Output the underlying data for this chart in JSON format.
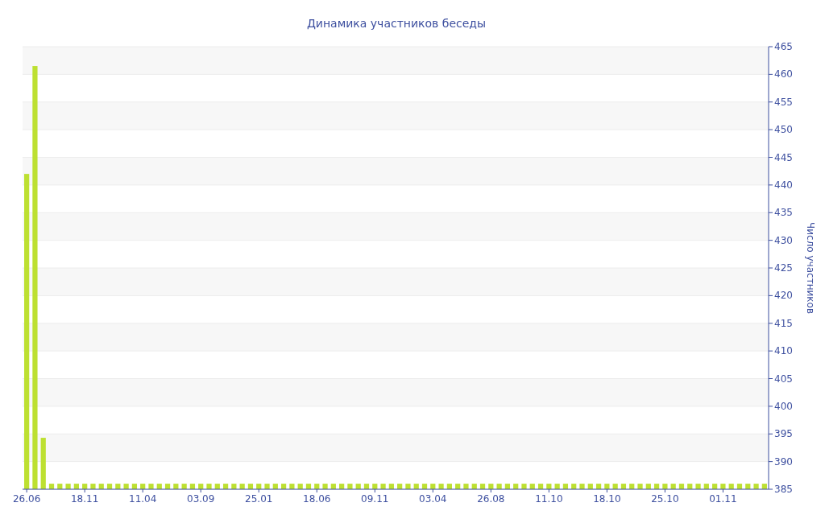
{
  "chart_data": {
    "type": "bar",
    "title": "Динамика участников беседы",
    "ylabel": "Число участников",
    "categories": [
      "26.06",
      null,
      null,
      null,
      null,
      null,
      null,
      "18.11",
      null,
      null,
      null,
      null,
      null,
      null,
      "11.04",
      null,
      null,
      null,
      null,
      null,
      null,
      "03.09",
      null,
      null,
      null,
      null,
      null,
      null,
      "25.01",
      null,
      null,
      null,
      null,
      null,
      null,
      "18.06",
      null,
      null,
      null,
      null,
      null,
      null,
      "09.11",
      null,
      null,
      null,
      null,
      null,
      null,
      "03.04",
      null,
      null,
      null,
      null,
      null,
      null,
      "26.08",
      null,
      null,
      null,
      null,
      null,
      null,
      "11.10",
      null,
      null,
      null,
      null,
      null,
      null,
      "18.10",
      null,
      null,
      null,
      null,
      null,
      null,
      "25.10",
      null,
      null,
      null,
      null,
      null,
      null,
      "01.11",
      null,
      null,
      null,
      null,
      null
    ],
    "values": [
      442,
      461.5,
      394.3,
      386,
      386,
      386,
      386,
      386,
      386,
      386,
      386,
      386,
      386,
      386,
      386,
      386,
      386,
      386,
      386,
      386,
      386,
      386,
      386,
      386,
      386,
      386,
      386,
      386,
      386,
      386,
      386,
      386,
      386,
      386,
      386,
      386,
      386,
      386,
      386,
      386,
      386,
      386,
      386,
      386,
      386,
      386,
      386,
      386,
      386,
      386,
      386,
      386,
      386,
      386,
      386,
      386,
      386,
      386,
      386,
      386,
      386,
      386,
      386,
      386,
      386,
      386,
      386,
      386,
      386,
      386,
      386,
      386,
      386,
      386,
      386,
      386,
      386,
      386,
      386,
      386,
      386,
      386,
      386,
      386,
      386,
      386,
      386,
      386,
      386,
      386
    ],
    "color": "#bde031",
    "ylim": [
      385,
      465
    ],
    "yticks": [
      385,
      390,
      395,
      400,
      405,
      410,
      415,
      420,
      425,
      430,
      435,
      440,
      445,
      450,
      455,
      460,
      465
    ],
    "grid": "y"
  }
}
